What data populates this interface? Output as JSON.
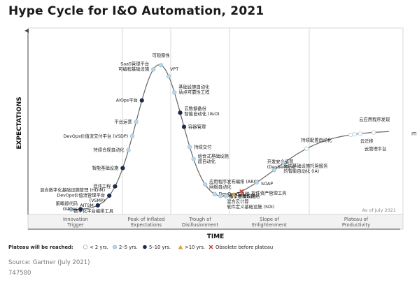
{
  "title": "Hype Cycle for I&O Automation, 2021",
  "axis": {
    "y_label": "EXPECTATIONS",
    "x_label": "TIME"
  },
  "as_of": "As of July 2021",
  "phases": [
    {
      "line1": "Innovation",
      "line2": "Trigger"
    },
    {
      "line1": "Peak of Inflated",
      "line2": "Expectations"
    },
    {
      "line1": "Trough of",
      "line2": "Disillusionment"
    },
    {
      "line1": "Slope of",
      "line2": "Enlightenment"
    },
    {
      "line1": "Plateau of",
      "line2": "Productivity"
    }
  ],
  "legend": {
    "title": "Plateau will be reached:",
    "items": [
      {
        "type": "lt2",
        "label": "< 2 yrs."
      },
      {
        "type": "2to5",
        "label": "2–5 yrs."
      },
      {
        "type": "5to10",
        "label": "5–10 yrs."
      },
      {
        "type": "gt10",
        "label": ">10 yrs."
      },
      {
        "type": "obsolete",
        "label": "Obsolete before plateau"
      }
    ]
  },
  "marker_colors": {
    "lt2": "#ffffff",
    "2to5": "#b9d7e8",
    "5to10": "#1c2b4b",
    "gt10": "#d9a441",
    "obsolete": "#c0392b"
  },
  "source": "Source: Gartner (July 2021)",
  "doc_id": "747580",
  "items": [
    {
      "t": 0.03,
      "type": "2to5",
      "lines": [
        "数字化平台编排工具"
      ]
    },
    {
      "t": 0.055,
      "type": "5to10",
      "lines": [
        "策略即代码",
        "GitOps"
      ]
    },
    {
      "t": 0.1,
      "type": "5to10",
      "lines": [
        "AITSM"
      ]
    },
    {
      "t": 0.13,
      "type": "5to10",
      "lines": [
        "混合数字化基础设施管理 (HDIM)",
        "DevOps价值流管理平台",
        "(VSMP)"
      ]
    },
    {
      "t": 0.145,
      "type": "5to10",
      "lines": [
        "混沌工程"
      ]
    },
    {
      "t": 0.165,
      "type": "5to10",
      "lines": [
        "智能基础设施"
      ]
    },
    {
      "t": 0.18,
      "type": "2to5",
      "lines": [
        "持续合规自动化"
      ]
    },
    {
      "t": 0.19,
      "type": "2to5",
      "lines": [
        "DevOps价值流交付平台 (VSDP)"
      ]
    },
    {
      "t": 0.2,
      "type": "2to5",
      "lines": [
        "平台运营"
      ]
    },
    {
      "t": 0.215,
      "type": "5to10",
      "lines": [
        "AIOps平台"
      ]
    },
    {
      "t": 0.245,
      "type": "2to5",
      "lines": [
        "SaaS管理平台",
        "可编程基础设施"
      ]
    },
    {
      "t": 0.265,
      "type": "2to5",
      "lines": [
        "可观察性"
      ]
    },
    {
      "t": 0.285,
      "type": "2to5",
      "lines": [
        "VPT"
      ]
    },
    {
      "t": 0.3,
      "type": "2to5",
      "lines": [
        "基础设施自动化",
        "站点可靠性工程"
      ]
    },
    {
      "t": 0.315,
      "type": "5to10",
      "lines": [
        "云数据备份",
        "智能自动化 (I&O)"
      ]
    },
    {
      "t": 0.325,
      "type": "5to10",
      "lines": [
        "容器管理"
      ]
    },
    {
      "t": 0.34,
      "type": "2to5",
      "lines": [
        "持续交付"
      ]
    },
    {
      "t": 0.35,
      "type": "2to5",
      "lines": [
        "组合式基础设施",
        "超自动化"
      ]
    },
    {
      "t": 0.38,
      "type": "2to5",
      "lines": [
        "应用程序发布编排 (ARO)",
        "网络自动化"
      ]
    },
    {
      "t": 0.405,
      "type": "2to5",
      "lines": [
        "DevOps工具链"
      ]
    },
    {
      "t": 0.42,
      "type": "2to5",
      "lines": [
        "不可变基础设施"
      ]
    },
    {
      "t": 0.435,
      "type": "2to5",
      "lines": [
        "基于意图的网络"
      ]
    },
    {
      "t": 0.455,
      "type": "gt10",
      "lines": [
        "混合云计算",
        "软件定义基础设施 (SDI)"
      ]
    },
    {
      "t": 0.475,
      "type": "obsolete",
      "lines": [
        "软件资产管理工具"
      ]
    },
    {
      "t": 0.515,
      "type": "2to5",
      "lines": [
        "SOAP"
      ]
    },
    {
      "t": 0.56,
      "type": "2to5",
      "lines": [
        "开发安全运营",
        "(DevSecOps)"
      ]
    },
    {
      "t": 0.585,
      "type": "2to5",
      "lines": [
        "面向基础设施托管服务",
        "的智能自动化 (IA)"
      ]
    },
    {
      "t": 0.645,
      "type": "lt2",
      "lines": [
        "持续配置自动化"
      ]
    },
    {
      "t": 0.76,
      "type": "lt2",
      "lines": [
        "云应用程序发现"
      ]
    },
    {
      "t": 0.77,
      "type": "lt2",
      "lines": [
        "云迁移"
      ]
    },
    {
      "t": 0.785,
      "type": "lt2",
      "lines": [
        "云管理平台"
      ]
    },
    {
      "t": 0.82,
      "type": "lt2",
      "lines": [
        "ITIL"
      ]
    }
  ]
}
